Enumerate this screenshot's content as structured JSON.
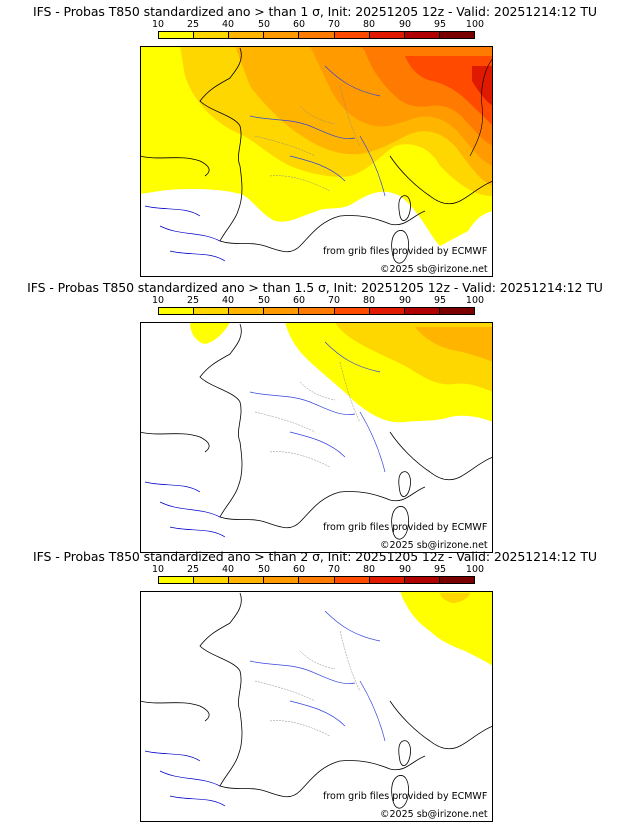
{
  "colorbar": {
    "ticks": [
      "10",
      "25",
      "40",
      "50",
      "60",
      "70",
      "80",
      "90",
      "95",
      "100"
    ],
    "colors": [
      "#ffff00",
      "#ffd700",
      "#ffb400",
      "#ff9a00",
      "#ff7a00",
      "#ff4a00",
      "#e01a00",
      "#b00000",
      "#7a0000"
    ]
  },
  "panels": [
    {
      "title": "IFS - Probas T850  standardized ano > than 1 σ, Init: 20251205 12z - Valid: 20251214:12 TU",
      "credit_source": "from grib files provided by ECMWF",
      "credit_copyright": "©2025 sb@irizone.net"
    },
    {
      "title": "IFS - Probas T850  standardized ano > than 1.5 σ, Init: 20251205 12z - Valid: 20251214:12 TU",
      "credit_source": "from grib files provided by ECMWF",
      "credit_copyright": "©2025 sb@irizone.net"
    },
    {
      "title": "IFS - Probas T850  standardized ano > than 2 σ, Init: 20251205 12z - Valid: 20251214:12 TU",
      "credit_source": "from grib files provided by ECMWF",
      "credit_copyright": "©2025 sb@irizone.net"
    }
  ]
}
